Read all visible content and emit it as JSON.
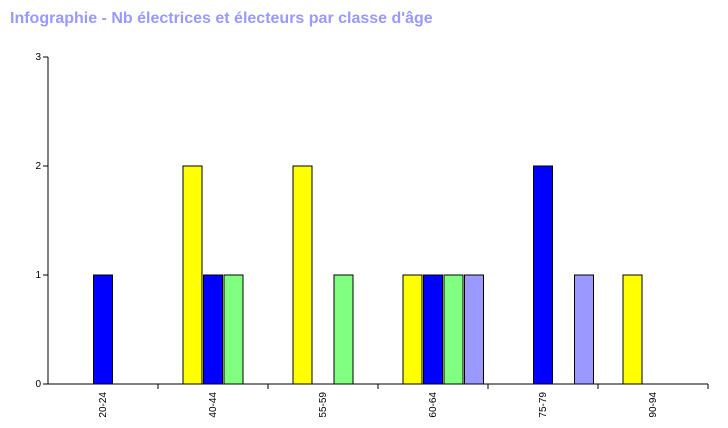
{
  "chart_data": {
    "type": "bar",
    "title": "Infographie - Nb électrices et électeurs par classe d'âge",
    "xlabel": "",
    "ylabel": "",
    "ylim": [
      0,
      3
    ],
    "yticks": [
      0,
      1,
      2,
      3
    ],
    "categories": [
      "20-24",
      "40-44",
      "55-59",
      "60-64",
      "75-79",
      "90-94"
    ],
    "series": [
      {
        "color": "#ffff00",
        "values": [
          0,
          2,
          2,
          1,
          0,
          1
        ]
      },
      {
        "color": "#0000ff",
        "values": [
          1,
          1,
          0,
          1,
          2,
          0
        ]
      },
      {
        "color": "#80ff80",
        "values": [
          0,
          1,
          1,
          1,
          0,
          0
        ]
      },
      {
        "color": "#9999ff",
        "values": [
          0,
          0,
          0,
          1,
          1,
          0
        ]
      }
    ],
    "grid": false,
    "legend": "none",
    "title_color": "#9999ff"
  }
}
